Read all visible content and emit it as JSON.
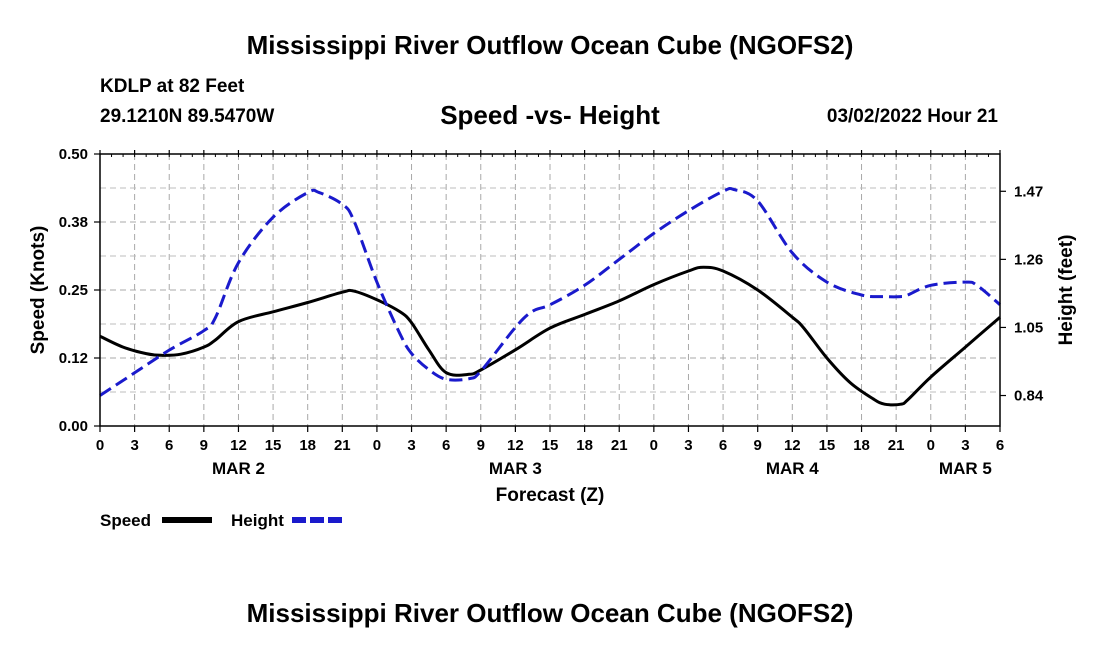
{
  "header": {
    "title": "Mississippi River Outflow Ocean Cube (NGOFS2)",
    "station": "KDLP at 82 Feet",
    "coords": "29.1210N  89.5470W",
    "subtitle": "Speed -vs- Height",
    "datetime": "03/02/2022 Hour 21"
  },
  "footer": {
    "title": "Mississippi River Outflow Ocean Cube (NGOFS2)"
  },
  "chart_data": {
    "type": "line",
    "title": "Speed -vs- Height",
    "xlabel": "Forecast (Z)",
    "ylabel": "Speed (Knots)",
    "y2label": "Height (feet)",
    "xlim": [
      0,
      78
    ],
    "ylim": [
      0,
      0.5
    ],
    "y2lim": [
      0.746,
      1.585
    ],
    "grid": true,
    "x_ticks": [
      0,
      3,
      6,
      9,
      12,
      15,
      18,
      21,
      24,
      27,
      30,
      33,
      36,
      39,
      42,
      45,
      48,
      51,
      54,
      57,
      60,
      63,
      66,
      69,
      72,
      75,
      78
    ],
    "x_tick_labels": [
      "0",
      "3",
      "6",
      "9",
      "12",
      "15",
      "18",
      "21",
      "0",
      "3",
      "6",
      "9",
      "12",
      "15",
      "18",
      "21",
      "0",
      "3",
      "6",
      "9",
      "12",
      "15",
      "18",
      "21",
      "0",
      "3",
      "6"
    ],
    "day_labels": [
      {
        "x": 12,
        "label": "MAR 2"
      },
      {
        "x": 36,
        "label": "MAR 3"
      },
      {
        "x": 60,
        "label": "MAR 4"
      },
      {
        "x": 75,
        "label": "MAR 5"
      }
    ],
    "y_ticks": [
      0,
      0.125,
      0.25,
      0.375,
      0.5
    ],
    "y_tick_labels": [
      "0.00",
      "0.12",
      "0.25",
      "0.38",
      "0.50"
    ],
    "y2_ticks": [
      0.84,
      1.05,
      1.26,
      1.47
    ],
    "y2_tick_labels": [
      "0.84",
      "1.05",
      "1.26",
      "1.47"
    ],
    "series": [
      {
        "name": "Speed",
        "axis": "left",
        "color": "#000000",
        "dash": "solid",
        "x": [
          0,
          2,
          4,
          5.3,
          7,
          9,
          10,
          12,
          15,
          18,
          21,
          22,
          24,
          26,
          27,
          28.5,
          30,
          32,
          33,
          36,
          39,
          42,
          45,
          48,
          51,
          52.3,
          54,
          57,
          60,
          61,
          63,
          65,
          67,
          68,
          69.4,
          70,
          72,
          75,
          78
        ],
        "values": [
          0.165,
          0.145,
          0.133,
          0.13,
          0.132,
          0.145,
          0.158,
          0.192,
          0.21,
          0.227,
          0.246,
          0.248,
          0.232,
          0.21,
          0.19,
          0.14,
          0.098,
          0.095,
          0.103,
          0.14,
          0.18,
          0.205,
          0.23,
          0.26,
          0.285,
          0.292,
          0.285,
          0.25,
          0.2,
          0.18,
          0.125,
          0.08,
          0.05,
          0.04,
          0.04,
          0.048,
          0.09,
          0.145,
          0.2
        ]
      },
      {
        "name": "Height",
        "axis": "right",
        "color": "#1a1acc",
        "dash": "dashed",
        "x": [
          0,
          3,
          6,
          9,
          10,
          12,
          15,
          18,
          19,
          21,
          22,
          24,
          26,
          27,
          28.5,
          30,
          32,
          33,
          36,
          37.5,
          39,
          42,
          45,
          48,
          51,
          54,
          55,
          57,
          60,
          63,
          66,
          68,
          69.4,
          70,
          72,
          75,
          76,
          78
        ],
        "values": [
          0.84,
          0.91,
          0.98,
          1.04,
          1.08,
          1.25,
          1.39,
          1.466,
          1.466,
          1.43,
          1.38,
          1.19,
          1.03,
          0.97,
          0.92,
          0.89,
          0.892,
          0.915,
          1.05,
          1.1,
          1.12,
          1.18,
          1.26,
          1.34,
          1.41,
          1.47,
          1.475,
          1.44,
          1.28,
          1.19,
          1.15,
          1.145,
          1.145,
          1.15,
          1.18,
          1.19,
          1.18,
          1.12
        ]
      }
    ],
    "legend": [
      {
        "label": "Speed",
        "color": "#000000",
        "dash": "solid"
      },
      {
        "label": "Height",
        "color": "#1a1acc",
        "dash": "dashed"
      }
    ],
    "legend_placement": "bottom-left"
  }
}
